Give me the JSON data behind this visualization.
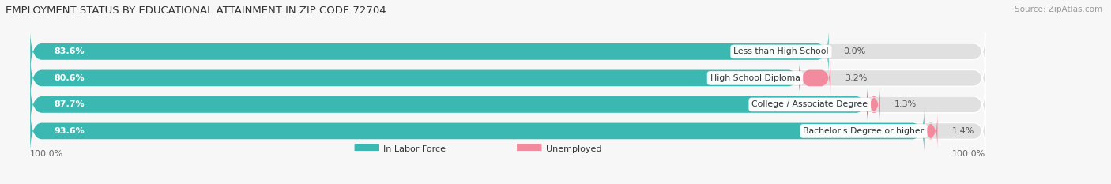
{
  "title": "EMPLOYMENT STATUS BY EDUCATIONAL ATTAINMENT IN ZIP CODE 72704",
  "source": "Source: ZipAtlas.com",
  "categories": [
    "Less than High School",
    "High School Diploma",
    "College / Associate Degree",
    "Bachelor's Degree or higher"
  ],
  "labor_force": [
    83.6,
    80.6,
    87.7,
    93.6
  ],
  "unemployed": [
    0.0,
    3.2,
    1.3,
    1.4
  ],
  "labor_force_color": "#3cb8b2",
  "unemployed_color": "#f28b9e",
  "bar_bg_color": "#e0e0e0",
  "bar_height": 0.62,
  "background_color": "#f7f7f7",
  "title_fontsize": 9.5,
  "axis_label_left": "100.0%",
  "axis_label_right": "100.0%",
  "legend_labor": "In Labor Force",
  "legend_unemployed": "Unemployed",
  "xlim_left": -2,
  "xlim_right": 112,
  "total_bar_width": 100
}
